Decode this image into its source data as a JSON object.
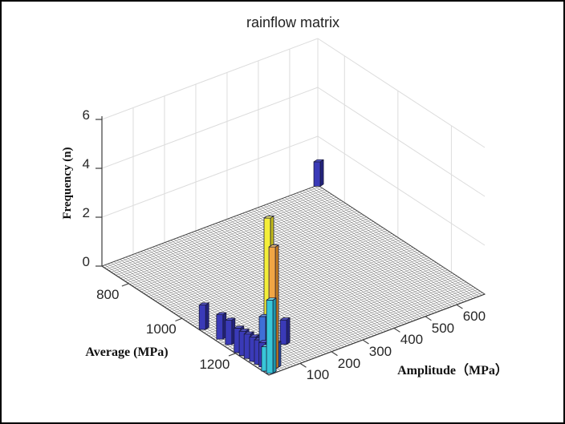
{
  "title": "rainflow matrix",
  "axes": {
    "z": {
      "label": "Frequency (n)",
      "ticks": [
        "0",
        "2",
        "4",
        "6"
      ]
    },
    "x": {
      "label": "Amplitude（MPa）",
      "ticks": [
        "100",
        "200",
        "300",
        "400",
        "500",
        "600"
      ]
    },
    "y": {
      "label": "Average (MPa)",
      "ticks": [
        "800",
        "1000",
        "1200"
      ]
    }
  },
  "chart_data": {
    "type": "bar",
    "subtype": "3d-bar-rainflow-matrix",
    "title": "rainflow matrix",
    "xlabel": "Amplitude（MPa）",
    "ylabel": "Average (MPa)",
    "zlabel": "Frequency (n)",
    "x_range": [
      0,
      690
    ],
    "y_range": [
      700,
      1325
    ],
    "z_range": [
      0,
      6
    ],
    "x_ticks": [
      100,
      200,
      300,
      400,
      500,
      600
    ],
    "y_ticks": [
      800,
      1000,
      1200
    ],
    "z_ticks": [
      0,
      2,
      4,
      6
    ],
    "grid": true,
    "bars": [
      {
        "amplitude": 7,
        "average": 1068,
        "frequency": 1,
        "color": "darkblue"
      },
      {
        "amplitude": 12,
        "average": 1127,
        "frequency": 1,
        "color": "darkblue"
      },
      {
        "amplitude": 13,
        "average": 1159,
        "frequency": 1,
        "color": "darkblue"
      },
      {
        "amplitude": 6,
        "average": 1200,
        "frequency": 1,
        "color": "darkblue"
      },
      {
        "amplitude": 7,
        "average": 1218,
        "frequency": 1,
        "color": "darkblue"
      },
      {
        "amplitude": 8,
        "average": 1235,
        "frequency": 1,
        "color": "darkblue"
      },
      {
        "amplitude": 10,
        "average": 1253,
        "frequency": 1,
        "color": "darkblue"
      },
      {
        "amplitude": 11,
        "average": 1270,
        "frequency": 1,
        "color": "darkblue"
      },
      {
        "amplitude": 12,
        "average": 1286,
        "frequency": 1,
        "color": "darkblue"
      },
      {
        "amplitude": 17,
        "average": 1281,
        "frequency": 2,
        "color": "mediumblue"
      },
      {
        "amplitude": 29,
        "average": 1285,
        "frequency": 6,
        "color": "yellow"
      },
      {
        "amplitude": 25,
        "average": 1308,
        "frequency": 5,
        "color": "orange"
      },
      {
        "amplitude": 4,
        "average": 1305,
        "frequency": 1,
        "color": "cyan"
      },
      {
        "amplitude": 34,
        "average": 1306,
        "frequency": 1,
        "color": "mediumblue"
      },
      {
        "amplitude": 7,
        "average": 1320,
        "frequency": 3,
        "color": "cyan"
      },
      {
        "amplitude": 125,
        "average": 1233,
        "frequency": 1,
        "color": "darkblue"
      },
      {
        "amplitude": 685,
        "average": 703,
        "frequency": 1,
        "color": "darkblue"
      }
    ],
    "palette": {
      "darkblue": {
        "face": "#3a3ab8",
        "side": "#23237d",
        "top": "#5757cf"
      },
      "mediumblue": {
        "face": "#3f6fd8",
        "side": "#2a4da0",
        "top": "#6b97e8"
      },
      "cyan": {
        "face": "#38c6d8",
        "side": "#1f96a8",
        "top": "#77dfeb"
      },
      "yellow": {
        "face": "#f4ee39",
        "side": "#c4bc1a",
        "top": "#fbf87a"
      },
      "orange": {
        "face": "#f1a545",
        "side": "#c1791f",
        "top": "#f8c878"
      },
      "edge_stroke": "#1a1a3a",
      "wall_grid": "#dcdcdc",
      "mesh_line": "#1a1a1a",
      "axis_line": "#3c3c3c",
      "text": "#262626"
    }
  }
}
